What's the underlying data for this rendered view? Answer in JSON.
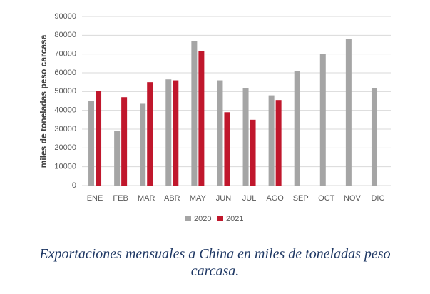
{
  "chart_data": {
    "type": "bar",
    "y_label": "miles de toneladas peso carcasa",
    "categories": [
      "ENE",
      "FEB",
      "MAR",
      "ABR",
      "MAY",
      "JUN",
      "JUL",
      "AGO",
      "SEP",
      "OCT",
      "NOV",
      "DIC"
    ],
    "series": [
      {
        "name": "2020",
        "color": "#a5a5a5",
        "values": [
          45000,
          29000,
          43500,
          56500,
          77000,
          56000,
          52000,
          48000,
          61000,
          70000,
          78000,
          52000
        ]
      },
      {
        "name": "2021",
        "color": "#c0172c",
        "values": [
          50500,
          47000,
          55000,
          56000,
          71500,
          39000,
          35000,
          45500,
          null,
          null,
          null,
          null
        ]
      }
    ],
    "ylim": [
      0,
      90000
    ],
    "yticks": [
      0,
      10000,
      20000,
      30000,
      40000,
      50000,
      60000,
      70000,
      80000,
      90000
    ],
    "grid": true,
    "legend": "bottom",
    "caption": "Exportaciones mensuales a China en miles de toneladas peso carcasa."
  }
}
